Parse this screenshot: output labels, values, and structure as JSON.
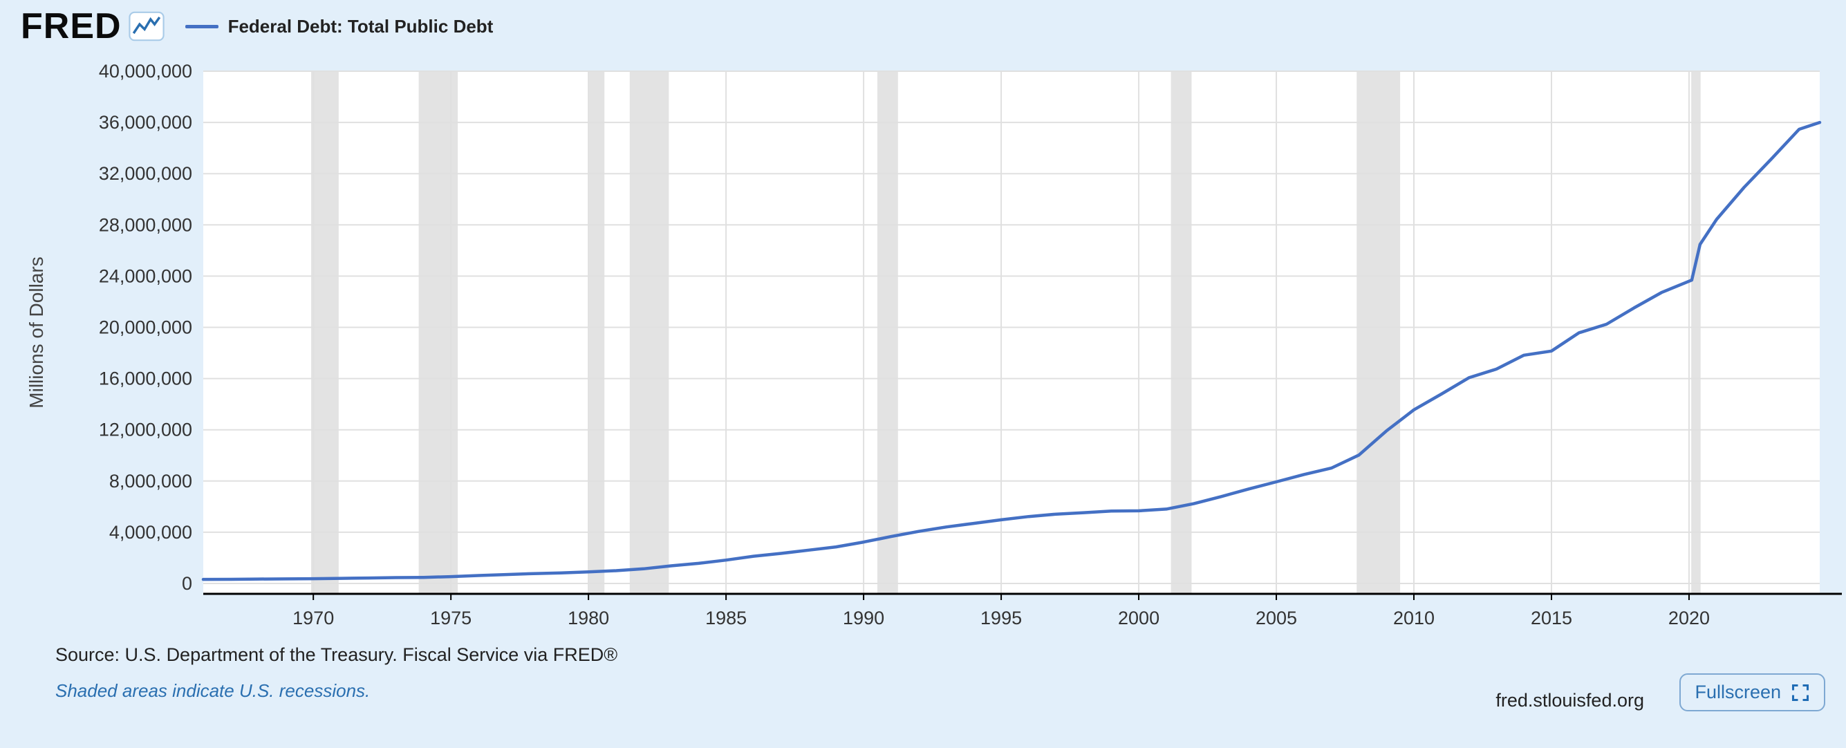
{
  "colors": {
    "background": "#e2effa",
    "line": "#4470c4",
    "link": "#2a6fb0",
    "recession": "#e3e3e3",
    "grid": "#e0e0e0",
    "axis": "#000000",
    "tick_text": "#333333"
  },
  "header": {
    "logo_text": "FRED",
    "legend_label": "Federal Debt: Total Public Debt"
  },
  "footer": {
    "source_text": "Source: U.S. Department of the Treasury. Fiscal Service via FRED®",
    "recession_note": "Shaded areas indicate U.S. recessions.",
    "site_label": "fred.stlouisfed.org",
    "fullscreen_label": "Fullscreen"
  },
  "chart_data": {
    "type": "line",
    "title": "Federal Debt: Total Public Debt",
    "xlabel": "",
    "ylabel": "Millions of Dollars",
    "ylim": [
      0,
      40000000
    ],
    "yticks": [
      0,
      4000000,
      8000000,
      12000000,
      16000000,
      20000000,
      24000000,
      28000000,
      32000000,
      36000000,
      40000000
    ],
    "xlim": [
      1966,
      2024.75
    ],
    "xticks": [
      1970,
      1975,
      1980,
      1985,
      1990,
      1995,
      2000,
      2005,
      2010,
      2015,
      2020
    ],
    "grid": true,
    "legend_position": "top-left",
    "recessions": [
      [
        1969.92,
        1970.92
      ],
      [
        1973.83,
        1975.25
      ],
      [
        1980.0,
        1980.58
      ],
      [
        1981.5,
        1982.92
      ],
      [
        1990.5,
        1991.25
      ],
      [
        2001.17,
        2001.92
      ],
      [
        2007.92,
        2009.5
      ],
      [
        2020.08,
        2020.42
      ]
    ],
    "series": [
      {
        "name": "Federal Debt: Total Public Debt",
        "color": "#4470c4",
        "x": [
          1966,
          1967,
          1968,
          1969,
          1970,
          1971,
          1972,
          1973,
          1974,
          1975,
          1976,
          1977,
          1978,
          1979,
          1980,
          1981,
          1982,
          1983,
          1984,
          1985,
          1986,
          1987,
          1988,
          1989,
          1990,
          1991,
          1992,
          1993,
          1994,
          1995,
          1996,
          1997,
          1998,
          1999,
          2000,
          2001,
          2002,
          2003,
          2004,
          2005,
          2006,
          2007,
          2008,
          2009,
          2010,
          2011,
          2012,
          2013,
          2014,
          2015,
          2016,
          2017,
          2018,
          2019,
          2020.1,
          2020.4,
          2021,
          2022,
          2023,
          2024,
          2024.75
        ],
        "values": [
          320999,
          326221,
          347578,
          353720,
          370919,
          398130,
          427260,
          458142,
          475060,
          533189,
          620433,
          698840,
          771544,
          826519,
          907701,
          997855,
          1142034,
          1377210,
          1572266,
          1823103,
          2125303,
          2350277,
          2602338,
          2857431,
          3233313,
          3665303,
          4064621,
          4411489,
          4692750,
          4973983,
          5224811,
          5413146,
          5526193,
          5656271,
          5674178,
          5807463,
          6228236,
          6783231,
          7379053,
          7932710,
          8506974,
          9007653,
          10024725,
          11909829,
          13561623,
          14790340,
          16066241,
          16738184,
          17824071,
          18150618,
          19573445,
          20244900,
          21516058,
          22719402,
          23687000,
          26477000,
          28428919,
          30928912,
          33167334,
          35464674,
          36000000
        ]
      }
    ]
  }
}
